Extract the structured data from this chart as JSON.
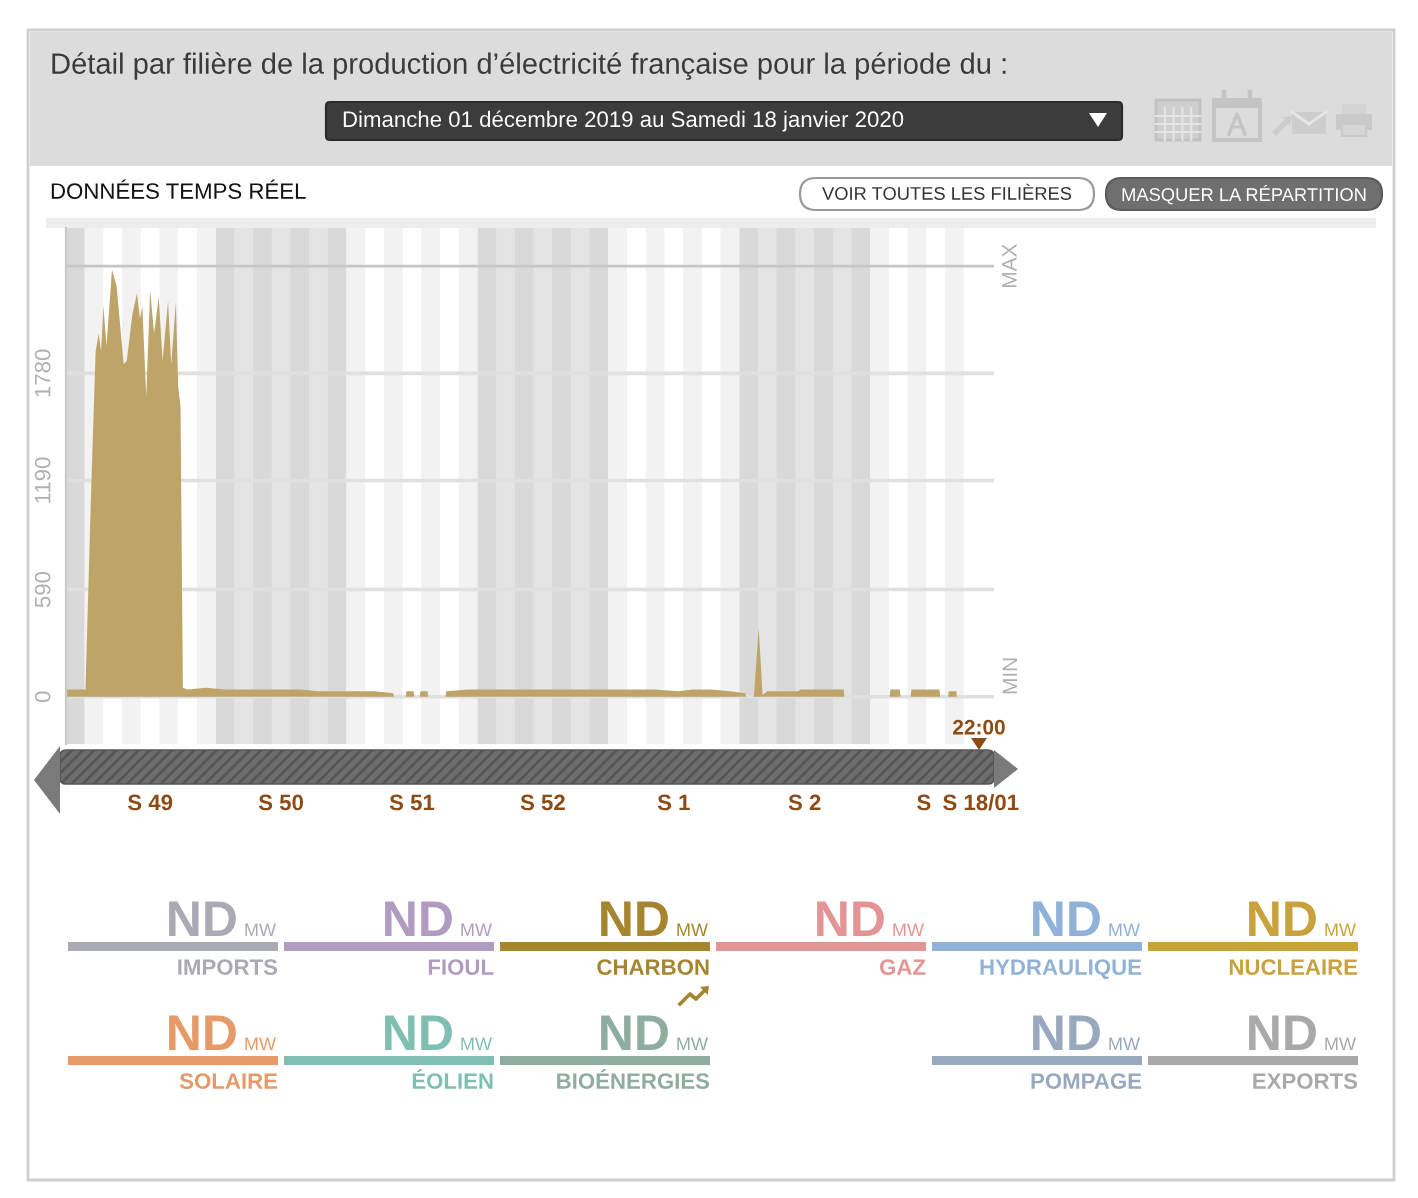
{
  "chart_data": {
    "type": "area",
    "title": "Détail par filière de la production d’électricité française pour la période du :",
    "subtitle": "Dimanche 01 décembre 2019 au Samedi 18 janvier 2020",
    "x": [
      "2019-12-01T00:00",
      "2019-12-01T12:00",
      "2019-12-02T01:00",
      "2019-12-02T08:00",
      "2019-12-02T14:00",
      "2019-12-02T18:00",
      "2019-12-02T21:00",
      "2019-12-03T00:00",
      "2019-12-03T04:00",
      "2019-12-03T11:00",
      "2019-12-03T17:00",
      "2019-12-04T02:00",
      "2019-12-04T06:00",
      "2019-12-04T13:00",
      "2019-12-04T19:00",
      "2019-12-04T23:00",
      "2019-12-05T02:00",
      "2019-12-05T07:00",
      "2019-12-05T12:00",
      "2019-12-05T17:00",
      "2019-12-05T23:00",
      "2019-12-06T04:00",
      "2019-12-06T11:00",
      "2019-12-06T15:00",
      "2019-12-06T21:00",
      "2019-12-07T00:00",
      "2019-12-07T03:00",
      "2019-12-07T06:00",
      "2019-12-07T12:00",
      "2019-12-08T12:00",
      "2019-12-09T12:00",
      "2019-12-10T12:00",
      "2019-12-11T12:00",
      "2019-12-12T12:00",
      "2019-12-13T12:00",
      "2019-12-14T12:00",
      "2019-12-15T12:00",
      "2019-12-16T12:00",
      "2019-12-17T12:00",
      "2019-12-18T12:00",
      "2019-12-18T13:00",
      "2019-12-19T04:00",
      "2019-12-19T05:00",
      "2019-12-19T14:00",
      "2019-12-19T15:00",
      "2019-12-19T22:00",
      "2019-12-19T23:00",
      "2019-12-20T08:00",
      "2019-12-20T09:00",
      "2019-12-21T07:00",
      "2019-12-21T08:00",
      "2019-12-22T12:00",
      "2019-12-24T12:00",
      "2019-12-26T12:00",
      "2019-12-28T12:00",
      "2019-12-30T12:00",
      "2020-01-01T12:00",
      "2020-01-02T18:00",
      "2020-01-03T12:00",
      "2020-01-04T12:00",
      "2020-01-05T12:00",
      "2020-01-06T08:00",
      "2020-01-06T09:00",
      "2020-01-06T18:00",
      "2020-01-06T19:00",
      "2020-01-07T01:00",
      "2020-01-07T06:00",
      "2020-01-07T12:00",
      "2020-01-08T12:00",
      "2020-01-09T04:00",
      "2020-01-09T06:00",
      "2020-01-10T12:00",
      "2020-01-11T14:00",
      "2020-01-11T15:00",
      "2020-01-14T01:00",
      "2020-01-14T02:00",
      "2020-01-14T14:00",
      "2020-01-14T15:00",
      "2020-01-15T04:00",
      "2020-01-15T05:00",
      "2020-01-16T17:00",
      "2020-01-16T18:00",
      "2020-01-17T04:00",
      "2020-01-17T05:00",
      "2020-01-17T15:00"
    ],
    "values": [
      40,
      40,
      40,
      1100,
      1900,
      2000,
      1900,
      2150,
      1930,
      2350,
      2260,
      1830,
      1850,
      2100,
      2220,
      2080,
      2150,
      1650,
      2240,
      2000,
      2200,
      1850,
      2180,
      1830,
      2170,
      1700,
      1600,
      50,
      40,
      50,
      40,
      40,
      40,
      40,
      40,
      30,
      30,
      30,
      30,
      20,
      0,
      0,
      30,
      30,
      0,
      0,
      30,
      30,
      0,
      0,
      30,
      40,
      40,
      40,
      40,
      40,
      40,
      30,
      40,
      40,
      30,
      20,
      0,
      0,
      10,
      380,
      10,
      30,
      30,
      30,
      40,
      40,
      40,
      0,
      0,
      40,
      40,
      0,
      0,
      40,
      40,
      0,
      0,
      30,
      30
    ],
    "color": "#bfa468",
    "xlim": [
      "2019-12-01T00:00",
      "2020-01-19T15:00"
    ],
    "xticks": [
      {
        "value": "2019-12-05T12:00",
        "label": "S 49"
      },
      {
        "value": "2019-12-12T12:00",
        "label": "S 50"
      },
      {
        "value": "2019-12-19T12:00",
        "label": "S 51"
      },
      {
        "value": "2019-12-26T12:00",
        "label": "S 52"
      },
      {
        "value": "2020-01-02T12:00",
        "label": "S 1"
      },
      {
        "value": "2020-01-09T12:00",
        "label": "S 2"
      },
      {
        "value": "2020-01-15T21:00",
        "label": "S"
      },
      {
        "value": "2020-01-18T22:00",
        "label": "S 18/01"
      }
    ],
    "ylim": [
      -260,
      2580
    ],
    "yticks": [
      0,
      590,
      1190,
      1780
    ],
    "grid": "y",
    "ref_lines": [
      {
        "axis": "y",
        "value": 2370,
        "label": "MAX",
        "color": "#c6c6c6"
      }
    ],
    "bands": [
      {
        "axis": "x",
        "from": "2019-12-01",
        "to": "2019-12-02",
        "color": "#d9d9d9"
      },
      {
        "axis": "x",
        "from": "2019-12-09",
        "to": "2019-12-16",
        "color": "#d9d9d9"
      },
      {
        "axis": "x",
        "from": "2019-12-23",
        "to": "2019-12-30",
        "color": "#d9d9d9"
      },
      {
        "axis": "x",
        "from": "2020-01-06",
        "to": "2020-01-13",
        "color": "#d9d9d9"
      },
      {
        "axis": "x",
        "from": "2019-12-02",
        "to": "2019-12-03",
        "color": "#f2f2f2"
      },
      {
        "axis": "x",
        "from": "2019-12-04",
        "to": "2019-12-05",
        "color": "#f2f2f2"
      },
      {
        "axis": "x",
        "from": "2019-12-06",
        "to": "2019-12-07",
        "color": "#f2f2f2"
      },
      {
        "axis": "x",
        "from": "2019-12-08",
        "to": "2019-12-09",
        "color": "#f2f2f2"
      },
      {
        "axis": "x",
        "from": "2019-12-10",
        "to": "2019-12-11",
        "color": "#e4e4e4"
      },
      {
        "axis": "x",
        "from": "2019-12-12",
        "to": "2019-12-13",
        "color": "#e4e4e4"
      },
      {
        "axis": "x",
        "from": "2019-12-14",
        "to": "2019-12-15",
        "color": "#e4e4e4"
      },
      {
        "axis": "x",
        "from": "2019-12-16",
        "to": "2019-12-17",
        "color": "#f2f2f2"
      },
      {
        "axis": "x",
        "from": "2019-12-18",
        "to": "2019-12-19",
        "color": "#f2f2f2"
      },
      {
        "axis": "x",
        "from": "2019-12-20",
        "to": "2019-12-21",
        "color": "#f2f2f2"
      },
      {
        "axis": "x",
        "from": "2019-12-22",
        "to": "2019-12-23",
        "color": "#f2f2f2"
      },
      {
        "axis": "x",
        "from": "2019-12-24",
        "to": "2019-12-25",
        "color": "#e4e4e4"
      },
      {
        "axis": "x",
        "from": "2019-12-26",
        "to": "2019-12-27",
        "color": "#e4e4e4"
      },
      {
        "axis": "x",
        "from": "2019-12-28",
        "to": "2019-12-29",
        "color": "#e4e4e4"
      },
      {
        "axis": "x",
        "from": "2019-12-30",
        "to": "2019-12-31",
        "color": "#f2f2f2"
      },
      {
        "axis": "x",
        "from": "2020-01-01",
        "to": "2020-01-02",
        "color": "#f2f2f2"
      },
      {
        "axis": "x",
        "from": "2020-01-03",
        "to": "2020-01-04",
        "color": "#f2f2f2"
      },
      {
        "axis": "x",
        "from": "2020-01-05",
        "to": "2020-01-06",
        "color": "#f2f2f2"
      },
      {
        "axis": "x",
        "from": "2020-01-07",
        "to": "2020-01-08",
        "color": "#e4e4e4"
      },
      {
        "axis": "x",
        "from": "2020-01-09",
        "to": "2020-01-10",
        "color": "#e4e4e4"
      },
      {
        "axis": "x",
        "from": "2020-01-11",
        "to": "2020-01-12",
        "color": "#e4e4e4"
      },
      {
        "axis": "x",
        "from": "2020-01-13",
        "to": "2020-01-14",
        "color": "#f2f2f2"
      },
      {
        "axis": "x",
        "from": "2020-01-15",
        "to": "2020-01-16",
        "color": "#f2f2f2"
      },
      {
        "axis": "x",
        "from": "2020-01-17",
        "to": "2020-01-18",
        "color": "#f2f2f2"
      }
    ],
    "annotations": [
      "DONNÉES TEMPS RÉEL",
      "VOIR TOUTES LES FILIÈRES",
      "MASQUER LA RÉPARTITION",
      "22:00",
      "MIN",
      "ND",
      "MW",
      "IMPORTS",
      "ND",
      "MW",
      "FIOUL",
      "ND",
      "MW",
      "CHARBON",
      "ND",
      "MW",
      "GAZ",
      "ND",
      "MW",
      "HYDRAULIQUE",
      "ND",
      "MW",
      "NUCLEAIRE",
      "ND",
      "MW",
      "SOLAIRE",
      "ND",
      "MW",
      "ÉOLIEN",
      "ND",
      "MW",
      "BIOÉNERGIES",
      "ND",
      "MW",
      "POMPAGE",
      "ND",
      "MW",
      "EXPORTS"
    ]
  }
}
